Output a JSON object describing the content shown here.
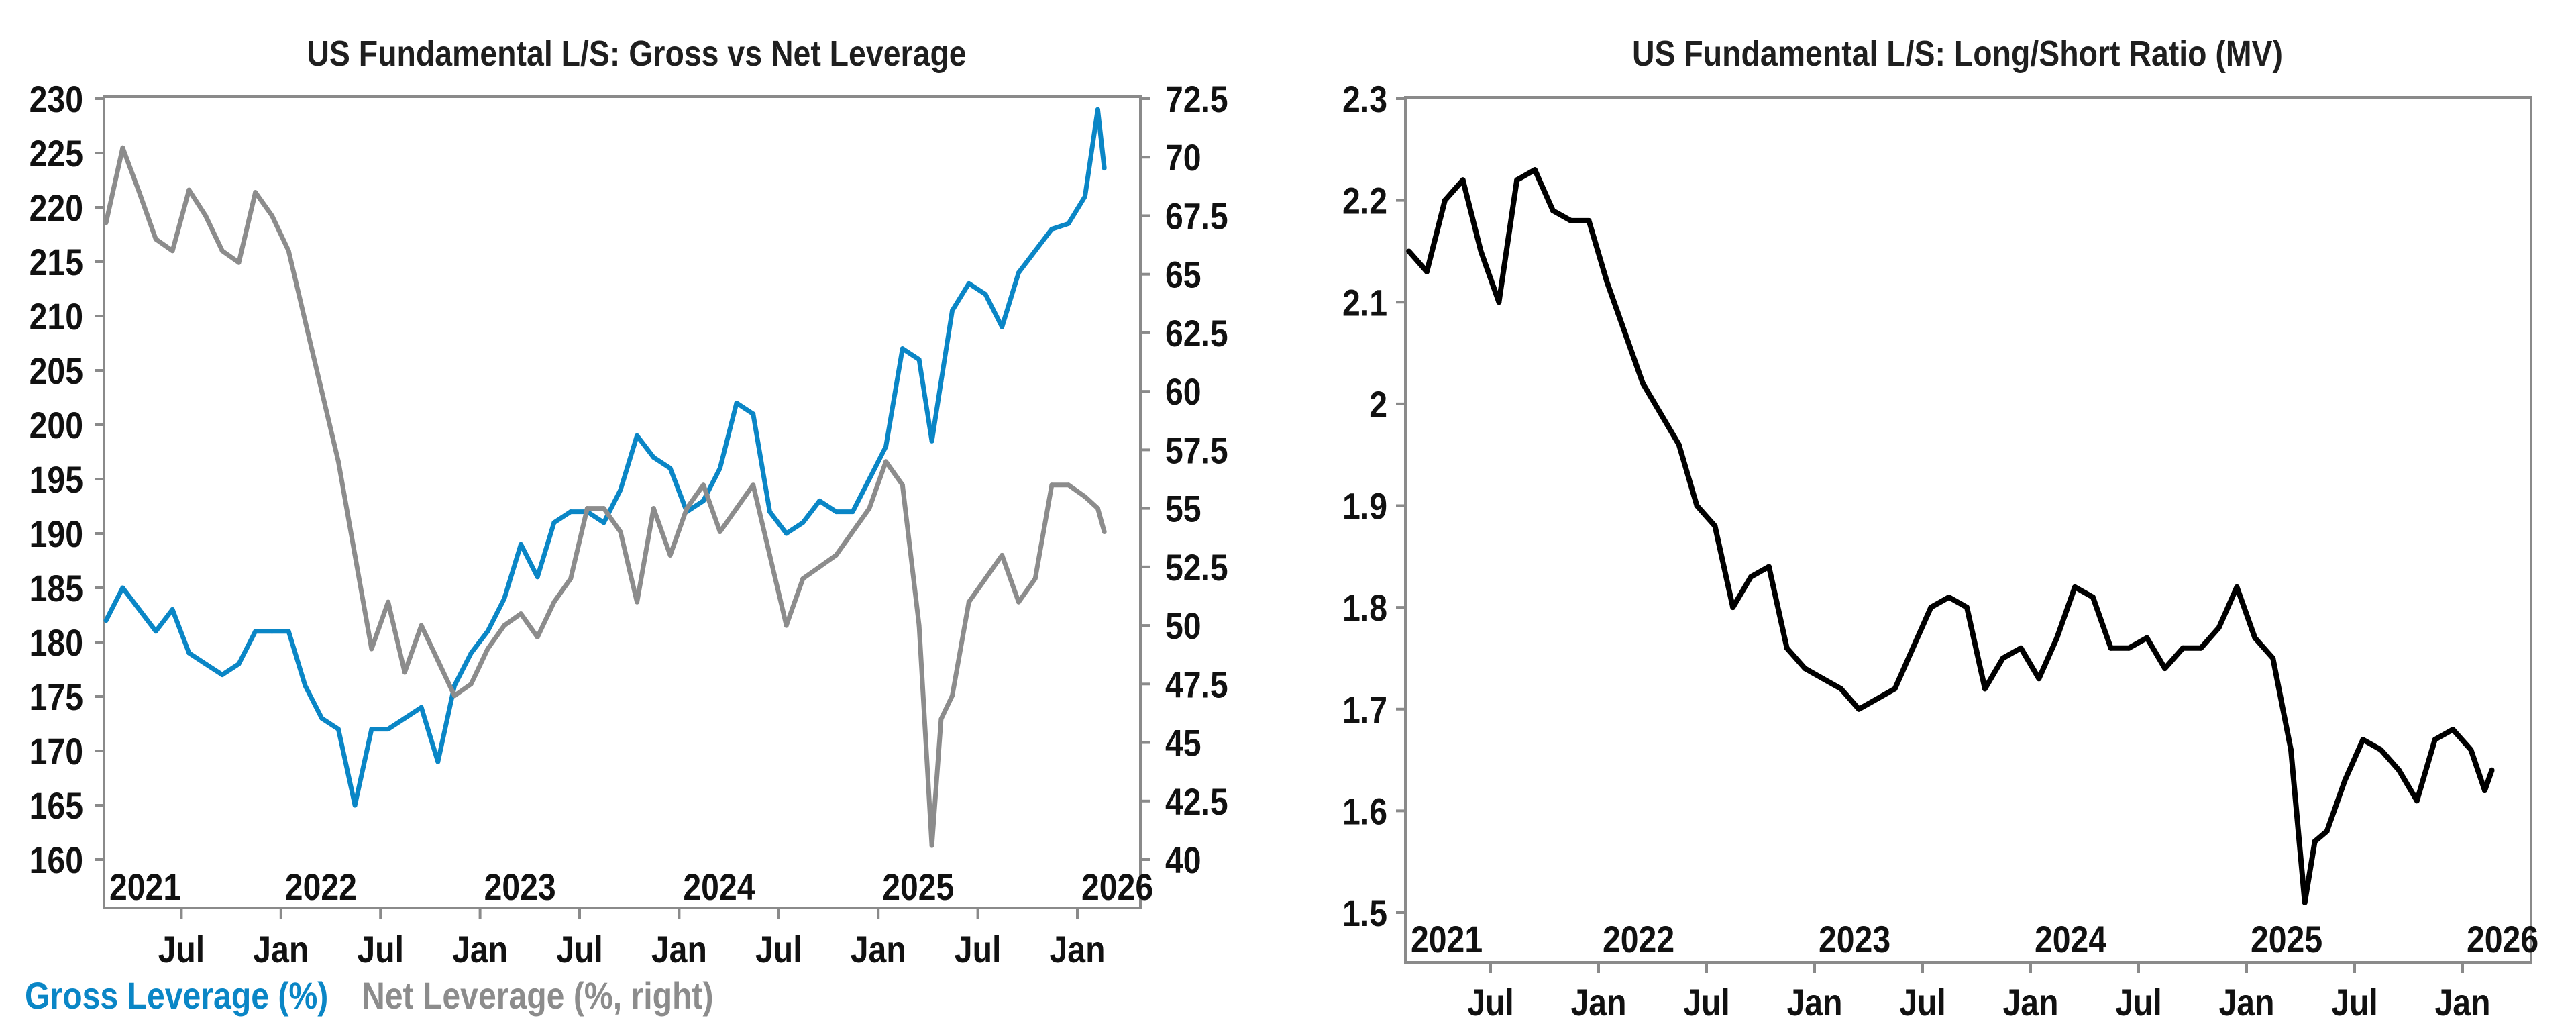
{
  "chart_data": [
    {
      "type": "line",
      "title": "US Fundamental L/S: Gross vs Net Leverage",
      "x_month_labels": [
        "Jul",
        "Jan",
        "Jul",
        "Jan",
        "Jul",
        "Jan",
        "Jul",
        "Jan",
        "Jul",
        "Jan"
      ],
      "x_year_labels": [
        "2021",
        "2022",
        "2023",
        "2024",
        "2025",
        "2026"
      ],
      "y_left_labels": [
        "230",
        "225",
        "220",
        "215",
        "210",
        "205",
        "200",
        "195",
        "190",
        "185",
        "180",
        "175",
        "170",
        "165",
        "160"
      ],
      "y_right_labels": [
        "72.5",
        "70",
        "67.5",
        "65",
        "62.5",
        "60",
        "57.5",
        "55",
        "52.5",
        "50",
        "47.5",
        "45",
        "42.5",
        "40"
      ],
      "y_left_range": [
        160,
        230
      ],
      "y_right_range": [
        40,
        72.5
      ],
      "grid": false,
      "legend_placement": "bottom-left",
      "x": [
        "2021-02-15",
        "2021-03-15",
        "2021-04-15",
        "2021-05-15",
        "2021-06-15",
        "2021-07-15",
        "2021-08-15",
        "2021-09-15",
        "2021-10-15",
        "2021-11-15",
        "2021-12-15",
        "2022-01-15",
        "2022-02-15",
        "2022-03-15",
        "2022-04-15",
        "2022-05-15",
        "2022-06-15",
        "2022-07-15",
        "2022-08-15",
        "2022-09-15",
        "2022-10-15",
        "2022-11-15",
        "2022-12-15",
        "2023-01-15",
        "2023-02-15",
        "2023-03-15",
        "2023-04-15",
        "2023-05-15",
        "2023-06-15",
        "2023-07-15",
        "2023-08-15",
        "2023-09-15",
        "2023-10-15",
        "2023-11-15",
        "2023-12-15",
        "2024-01-15",
        "2024-02-15",
        "2024-03-15",
        "2024-04-15",
        "2024-05-15",
        "2024-06-15",
        "2024-07-15",
        "2024-08-15",
        "2024-09-15",
        "2024-10-15",
        "2024-11-15",
        "2024-12-15",
        "2025-01-15",
        "2025-02-15",
        "2025-03-15",
        "2025-04-08",
        "2025-04-25",
        "2025-05-15",
        "2025-06-15",
        "2025-07-15",
        "2025-08-15",
        "2025-09-15",
        "2025-10-15",
        "2025-11-15",
        "2025-12-15",
        "2026-01-15",
        "2026-02-08",
        "2026-02-20"
      ],
      "series": [
        {
          "name": "Gross Leverage (%)",
          "axis": "left",
          "color": "#0a86c6",
          "values": [
            182,
            185,
            183,
            181,
            183,
            179,
            178,
            177,
            178,
            181,
            181,
            181,
            176,
            173,
            172,
            165,
            172,
            172,
            173,
            174,
            169,
            176,
            179,
            181,
            184,
            189,
            186,
            191,
            192,
            192,
            191,
            194,
            199,
            197,
            196,
            192,
            193,
            196,
            202,
            201,
            192,
            190,
            191,
            193,
            192,
            192,
            195,
            198,
            207,
            206,
            198.5,
            204,
            210.5,
            213,
            212,
            209,
            214,
            216,
            218,
            218.5,
            221,
            229,
            223.6
          ]
        },
        {
          "name": "Net Leverage (%, right)",
          "axis": "right",
          "color": "#8c8c8c",
          "values": [
            67.2,
            70.4,
            68.5,
            66.5,
            66,
            68.6,
            67.5,
            66,
            65.5,
            68.5,
            67.5,
            66,
            63,
            60,
            57,
            53,
            49,
            51,
            48,
            50,
            48.5,
            47,
            47.5,
            49,
            50,
            50.5,
            49.5,
            51,
            52,
            55,
            55,
            54,
            51,
            55,
            53,
            55,
            56,
            54,
            55,
            56,
            53,
            50,
            52,
            52.5,
            53,
            54,
            55,
            57,
            56,
            50,
            40.6,
            46,
            47,
            51,
            52,
            53,
            51,
            52,
            56,
            56,
            55.5,
            55,
            54
          ]
        }
      ]
    },
    {
      "type": "line",
      "title": "US Fundamental L/S: Long/Short Ratio (MV)",
      "x_month_labels": [
        "Jul",
        "Jan",
        "Jul",
        "Jan",
        "Jul",
        "Jan",
        "Jul",
        "Jan",
        "Jul",
        "Jan"
      ],
      "x_year_labels": [
        "2021",
        "2022",
        "2023",
        "2024",
        "2025",
        "2026"
      ],
      "y_left_labels": [
        "2.3",
        "2.2",
        "2.1",
        "2",
        "1.9",
        "1.8",
        "1.7",
        "1.6",
        "1.5"
      ],
      "y_left_range": [
        1.5,
        2.3
      ],
      "grid": false,
      "x": [
        "2021-02-15",
        "2021-03-15",
        "2021-04-15",
        "2021-05-15",
        "2021-06-15",
        "2021-07-15",
        "2021-08-15",
        "2021-09-15",
        "2021-10-15",
        "2021-11-15",
        "2021-12-15",
        "2022-01-15",
        "2022-02-15",
        "2022-03-15",
        "2022-04-15",
        "2022-05-15",
        "2022-06-15",
        "2022-07-15",
        "2022-08-15",
        "2022-09-15",
        "2022-10-15",
        "2022-11-15",
        "2022-12-15",
        "2023-01-15",
        "2023-02-15",
        "2023-03-15",
        "2023-04-15",
        "2023-05-15",
        "2023-06-15",
        "2023-07-15",
        "2023-08-15",
        "2023-09-15",
        "2023-10-15",
        "2023-11-15",
        "2023-12-15",
        "2024-01-15",
        "2024-02-15",
        "2024-03-15",
        "2024-04-15",
        "2024-05-15",
        "2024-06-15",
        "2024-07-15",
        "2024-08-15",
        "2024-09-15",
        "2024-10-15",
        "2024-11-15",
        "2024-12-15",
        "2025-01-15",
        "2025-02-15",
        "2025-03-15",
        "2025-04-08",
        "2025-04-25",
        "2025-05-15",
        "2025-06-15",
        "2025-07-15",
        "2025-08-15",
        "2025-09-15",
        "2025-10-15",
        "2025-11-15",
        "2025-12-15",
        "2026-01-15",
        "2026-02-08",
        "2026-02-20"
      ],
      "series": [
        {
          "axis": "left",
          "color": "#000000",
          "values": [
            2.15,
            2.13,
            2.2,
            2.22,
            2.15,
            2.1,
            2.22,
            2.23,
            2.19,
            2.18,
            2.18,
            2.12,
            2.07,
            2.02,
            1.99,
            1.96,
            1.9,
            1.88,
            1.8,
            1.83,
            1.84,
            1.76,
            1.74,
            1.73,
            1.72,
            1.7,
            1.71,
            1.72,
            1.76,
            1.8,
            1.81,
            1.8,
            1.72,
            1.75,
            1.76,
            1.73,
            1.77,
            1.82,
            1.81,
            1.76,
            1.76,
            1.77,
            1.74,
            1.76,
            1.76,
            1.78,
            1.82,
            1.77,
            1.75,
            1.66,
            1.51,
            1.57,
            1.58,
            1.63,
            1.67,
            1.66,
            1.64,
            1.61,
            1.67,
            1.68,
            1.66,
            1.62,
            1.64
          ]
        }
      ]
    }
  ]
}
